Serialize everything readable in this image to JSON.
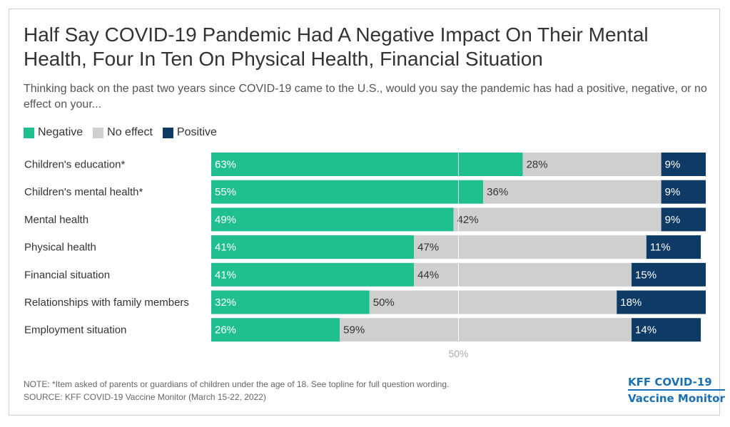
{
  "title": "Half Say COVID-19 Pandemic Had A Negative Impact On Their Mental Health, Four In Ten On Physical Health, Financial Situation",
  "subtitle": "Thinking back on the past two years since COVID-19 came to the U.S., would you say the pandemic has had a positive, negative, or no effect on your...",
  "note": "NOTE: *Item asked of parents or guardians of children under the age of 18. See topline for full question wording.",
  "source": "SOURCE: KFF COVID-19 Vaccine Monitor (March 15-22, 2022)",
  "logo": {
    "line1": "KFF COVID-19",
    "line2": "Vaccine Monitor"
  },
  "colors": {
    "negative": "#1fbf8f",
    "no_effect": "#cfcfcf",
    "positive": "#0d3b66",
    "accent": "#1a6fb5"
  },
  "chart_data": {
    "type": "bar",
    "orientation": "horizontal",
    "stacked": true,
    "categories": [
      "Children's education*",
      "Children's mental health*",
      "Mental health",
      "Physical health",
      "Financial situation",
      "Relationships with family members",
      "Employment situation"
    ],
    "series": [
      {
        "name": "Negative",
        "color": "#1fbf8f",
        "label_color": "#ffffff",
        "values": [
          63,
          55,
          49,
          41,
          41,
          32,
          26
        ]
      },
      {
        "name": "No effect",
        "color": "#cfcfcf",
        "label_color": "#333333",
        "values": [
          28,
          36,
          42,
          47,
          44,
          50,
          59
        ]
      },
      {
        "name": "Positive",
        "color": "#0d3b66",
        "label_color": "#ffffff",
        "values": [
          9,
          9,
          9,
          11,
          15,
          18,
          14
        ]
      }
    ],
    "value_suffix": "%",
    "reference_line": {
      "value": 50,
      "label": "50%"
    },
    "xlim": [
      0,
      100
    ],
    "legend_position": "top-left",
    "grid": false
  }
}
